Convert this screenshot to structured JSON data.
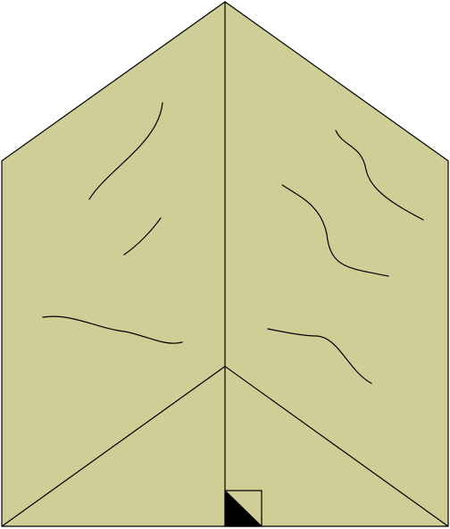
{
  "figure": {
    "kind": "pentagon-shaped folded paper diagram",
    "texture": "wood-grain",
    "colors": {
      "fill": "#cece96",
      "stroke": "#000000",
      "marker_fill": "#000000",
      "background": "#ffffff"
    },
    "right_angle_marker": true
  }
}
